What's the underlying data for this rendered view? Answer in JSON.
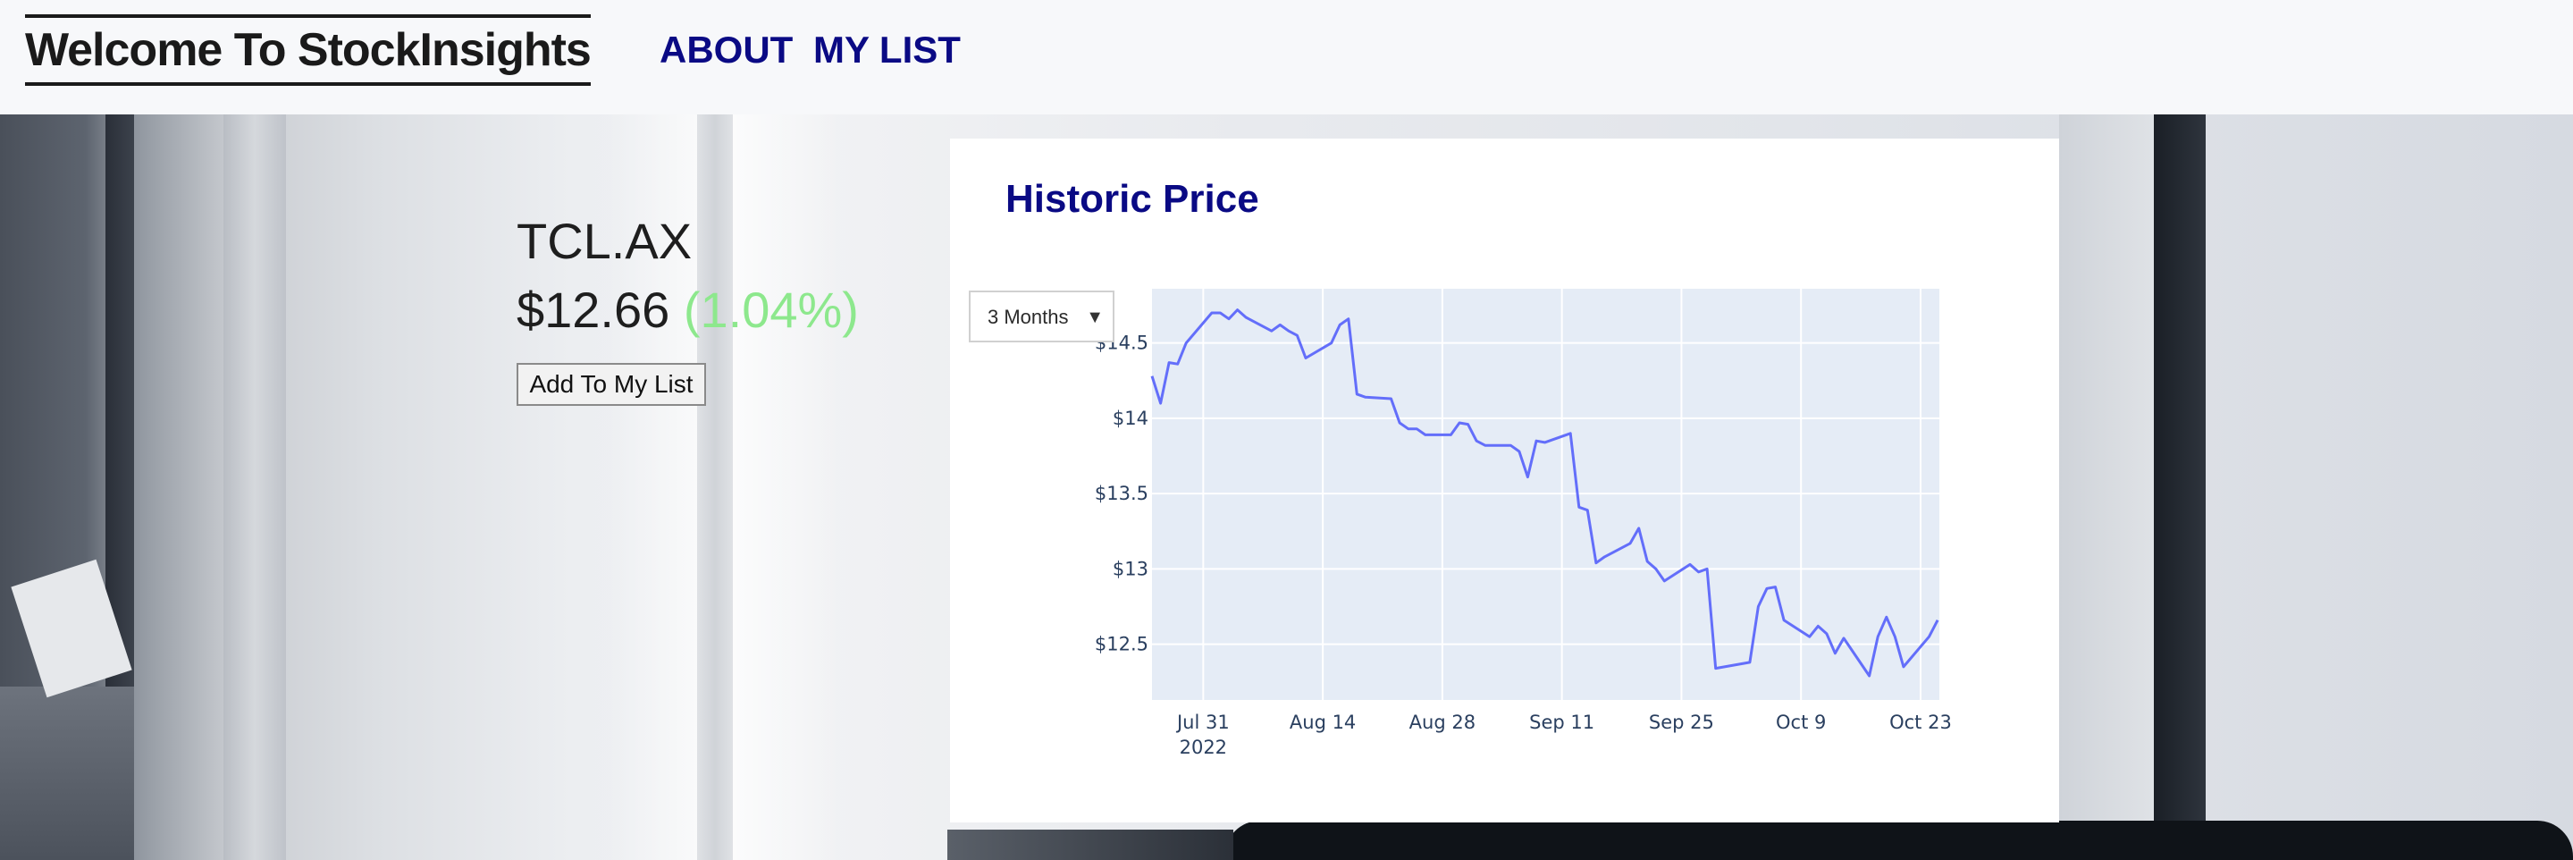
{
  "header": {
    "brand": "Welcome To StockInsights",
    "nav": [
      "ABOUT",
      "MY LIST"
    ]
  },
  "stock": {
    "ticker": "TCL.AX",
    "price": "$12.66",
    "change": "(1.04%)",
    "change_color": "#8de88d",
    "add_button": "Add To My List"
  },
  "chart": {
    "title": "Historic Price",
    "range_select": {
      "selected": "3 Months",
      "arrow": "▼"
    }
  },
  "colors": {
    "brand": "#1a1a1a",
    "accent": "#0a0a84",
    "line": "#636efa",
    "plot_bg": "#e5ecf6"
  },
  "chart_data": {
    "type": "line",
    "title": "",
    "xlabel": "",
    "ylabel": "",
    "grid": true,
    "ylim": [
      12.13,
      14.86
    ],
    "y_ticks": [
      {
        "value": 12.5,
        "label": "$12.5"
      },
      {
        "value": 13,
        "label": "$13"
      },
      {
        "value": 13.5,
        "label": "$13.5"
      },
      {
        "value": 14,
        "label": "$14"
      },
      {
        "value": 14.5,
        "label": "$14.5"
      }
    ],
    "x_range": [
      "2022-07-25",
      "2022-10-24"
    ],
    "x_ticks": [
      {
        "date": "2022-07-31",
        "label": "Jul 31",
        "sublabel": "2022"
      },
      {
        "date": "2022-08-14",
        "label": "Aug 14"
      },
      {
        "date": "2022-08-28",
        "label": "Aug 28"
      },
      {
        "date": "2022-09-11",
        "label": "Sep 11"
      },
      {
        "date": "2022-09-25",
        "label": "Sep 25"
      },
      {
        "date": "2022-10-09",
        "label": "Oct 9"
      },
      {
        "date": "2022-10-23",
        "label": "Oct 23"
      }
    ],
    "series": [
      {
        "values": [
          [
            "2022-07-25",
            14.28
          ],
          [
            "2022-07-26",
            14.1
          ],
          [
            "2022-07-27",
            14.37
          ],
          [
            "2022-07-28",
            14.36
          ],
          [
            "2022-07-29",
            14.5
          ],
          [
            "2022-08-01",
            14.7
          ],
          [
            "2022-08-02",
            14.7
          ],
          [
            "2022-08-03",
            14.66
          ],
          [
            "2022-08-04",
            14.72
          ],
          [
            "2022-08-05",
            14.67
          ],
          [
            "2022-08-08",
            14.58
          ],
          [
            "2022-08-09",
            14.62
          ],
          [
            "2022-08-10",
            14.58
          ],
          [
            "2022-08-11",
            14.55
          ],
          [
            "2022-08-12",
            14.4
          ],
          [
            "2022-08-15",
            14.5
          ],
          [
            "2022-08-16",
            14.62
          ],
          [
            "2022-08-17",
            14.66
          ],
          [
            "2022-08-18",
            14.16
          ],
          [
            "2022-08-19",
            14.14
          ],
          [
            "2022-08-22",
            14.13
          ],
          [
            "2022-08-23",
            13.97
          ],
          [
            "2022-08-24",
            13.93
          ],
          [
            "2022-08-25",
            13.93
          ],
          [
            "2022-08-26",
            13.89
          ],
          [
            "2022-08-29",
            13.89
          ],
          [
            "2022-08-30",
            13.97
          ],
          [
            "2022-08-31",
            13.96
          ],
          [
            "2022-09-01",
            13.85
          ],
          [
            "2022-09-02",
            13.82
          ],
          [
            "2022-09-05",
            13.82
          ],
          [
            "2022-09-06",
            13.78
          ],
          [
            "2022-09-07",
            13.61
          ],
          [
            "2022-09-08",
            13.85
          ],
          [
            "2022-09-09",
            13.84
          ],
          [
            "2022-09-12",
            13.9
          ],
          [
            "2022-09-13",
            13.41
          ],
          [
            "2022-09-14",
            13.39
          ],
          [
            "2022-09-15",
            13.04
          ],
          [
            "2022-09-16",
            13.08
          ],
          [
            "2022-09-19",
            13.17
          ],
          [
            "2022-09-20",
            13.27
          ],
          [
            "2022-09-21",
            13.05
          ],
          [
            "2022-09-22",
            13.0
          ],
          [
            "2022-09-23",
            12.92
          ],
          [
            "2022-09-26",
            13.03
          ],
          [
            "2022-09-27",
            12.98
          ],
          [
            "2022-09-28",
            13.0
          ],
          [
            "2022-09-29",
            12.34
          ],
          [
            "2022-10-03",
            12.38
          ],
          [
            "2022-10-04",
            12.75
          ],
          [
            "2022-10-05",
            12.87
          ],
          [
            "2022-10-06",
            12.88
          ],
          [
            "2022-10-07",
            12.66
          ],
          [
            "2022-10-10",
            12.55
          ],
          [
            "2022-10-11",
            12.62
          ],
          [
            "2022-10-12",
            12.57
          ],
          [
            "2022-10-13",
            12.44
          ],
          [
            "2022-10-14",
            12.54
          ],
          [
            "2022-10-17",
            12.29
          ],
          [
            "2022-10-18",
            12.55
          ],
          [
            "2022-10-19",
            12.68
          ],
          [
            "2022-10-20",
            12.55
          ],
          [
            "2022-10-21",
            12.35
          ],
          [
            "2022-10-24",
            12.55
          ],
          [
            "2022-10-25",
            12.66
          ]
        ]
      }
    ]
  }
}
